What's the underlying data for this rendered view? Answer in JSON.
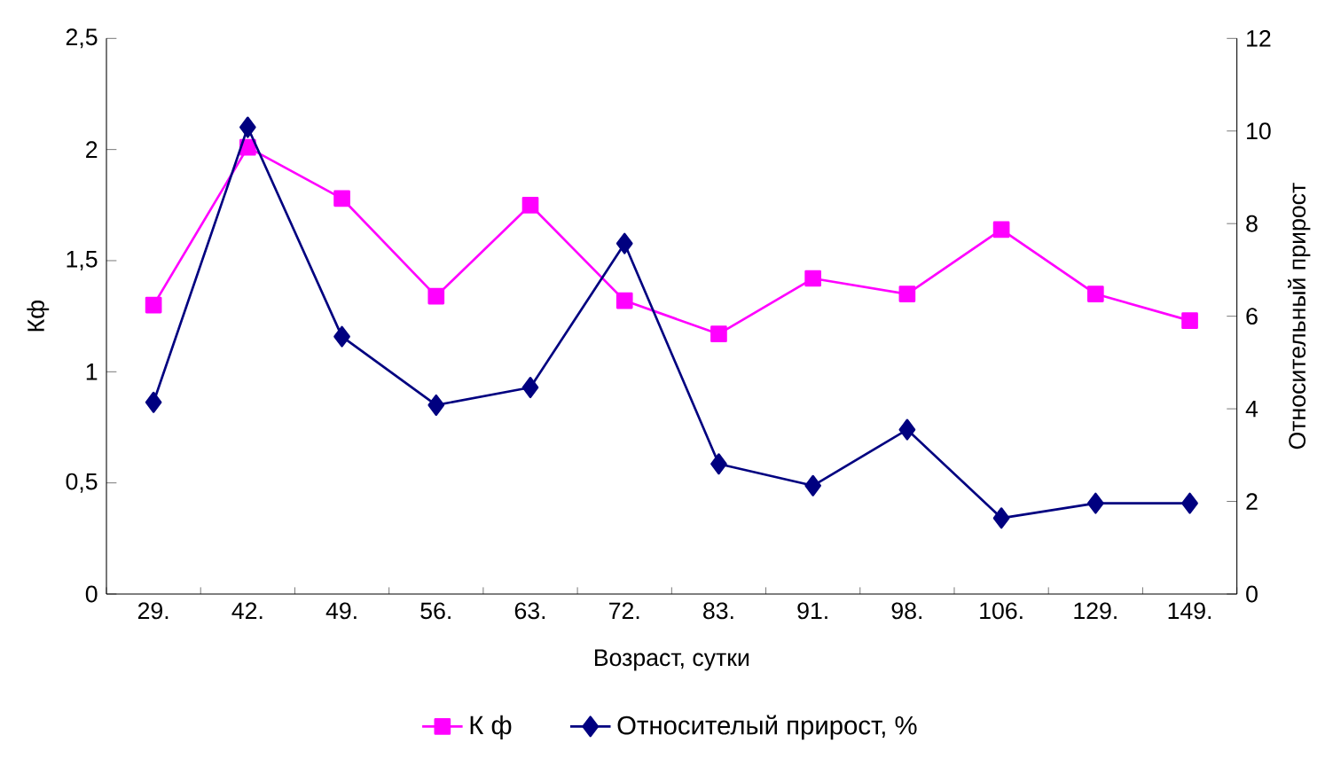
{
  "chart_data": {
    "type": "line",
    "xlabel": "Возраст, сутки",
    "ylabel": "Кф",
    "y2label": "Относительный прирост",
    "categories": [
      "29.",
      "42.",
      "49.",
      "56.",
      "63.",
      "72.",
      "83.",
      "91.",
      "98.",
      "106.",
      "129.",
      "149."
    ],
    "series": [
      {
        "name": "К ф",
        "color": "#ff00ff",
        "marker": "square",
        "values": [
          1.3,
          2.01,
          1.78,
          1.34,
          1.75,
          1.32,
          1.17,
          1.42,
          1.35,
          1.64,
          1.35,
          1.23
        ]
      },
      {
        "name": "Относителый прирост, %",
        "color": "#000080",
        "marker": "diamond",
        "axis": "y2",
        "values": [
          4.14,
          10.08,
          5.56,
          4.08,
          4.46,
          7.57,
          2.81,
          2.34,
          3.55,
          1.64,
          1.96,
          1.96
        ]
      }
    ],
    "ylim": [
      0,
      2.5
    ],
    "yticks": [
      0,
      {
        "value": 0.5,
        "label": "0,5"
      },
      1,
      {
        "value": 1.5,
        "label": "1,5"
      },
      2,
      {
        "value": 2.5,
        "label": "2,5"
      }
    ],
    "y2lim": [
      0,
      12
    ],
    "y2ticks": [
      0,
      2,
      4,
      6,
      8,
      10,
      12
    ],
    "grid": false,
    "legend": "bottom",
    "line_style": "solid"
  }
}
